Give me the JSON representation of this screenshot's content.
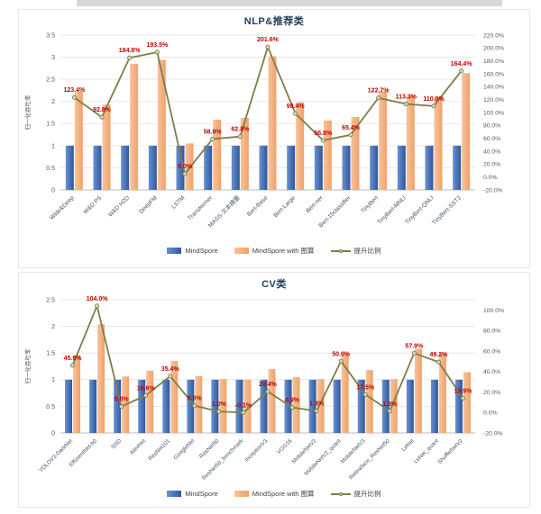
{
  "legend": {
    "mindspore": "MindSpore",
    "with_graph": "MindSpore with 图算",
    "ratio": "提升比例"
  },
  "colors": {
    "bar_blue": "#4472C4",
    "bar_blue_light": "#6893D1",
    "bar_blue_dark": "#31569B",
    "bar_orange": "#F4B183",
    "bar_orange_light": "#F7C49C",
    "bar_orange_dark": "#EFA26B",
    "line_olive": "#7E7E4C",
    "marker_fill": "#D7DCB8",
    "label_red": "#C00000",
    "tick_text": "#595959",
    "category_text": "#44546A",
    "grid": "#E2E2E2",
    "axis_line": "#A6A6A6",
    "title": "#243F60"
  },
  "chart_data": [
    {
      "type": "bar+line",
      "title": "NLP&推荐类",
      "y_axis_title": "归一化吞吐率",
      "legend_position": "bottom",
      "grid": true,
      "categories": [
        "Wide&Deep",
        "W&D PS",
        "W&D H2D",
        "DeepFM",
        "LSTM",
        "Transformer",
        "MASS-文本摘要",
        "Bert-Base",
        "Bert-Large",
        "Bert-ner",
        "Bert-15classifier",
        "TinyBert",
        "TinyBert-MNLI",
        "TinyBert-QNLI",
        "TinyBert-SST2"
      ],
      "series": [
        {
          "name": "MindSpore",
          "type": "bar",
          "values": [
            1,
            1,
            1,
            1,
            1,
            1,
            1,
            1,
            1,
            1,
            1,
            1,
            1,
            1,
            1
          ]
        },
        {
          "name": "MindSpore with 图算",
          "type": "bar",
          "values": [
            2.23,
            1.93,
            2.85,
            2.94,
            1.05,
            1.59,
            1.63,
            3.02,
            1.98,
            1.57,
            1.65,
            2.23,
            2.13,
            2.1,
            2.64
          ]
        },
        {
          "name": "提升比例",
          "type": "line",
          "values_pct": [
            123.4,
            92.8,
            184.8,
            193.5,
            5.0,
            58.9,
            62.8,
            201.6,
            98.4,
            56.8,
            65.4,
            122.7,
            113.3,
            110.0,
            164.4
          ]
        }
      ],
      "point_labels": [
        "123.4%",
        "92.8%",
        "184.8%",
        "193.5%",
        "5.0%",
        "58.9%",
        "62.8%",
        "201.6%",
        "98.4%",
        "56.8%",
        "65.4%",
        "122.7%",
        "113.3%",
        "110.0%",
        "164.4%"
      ],
      "left_axis": {
        "ticks": [
          "0",
          "0.5",
          "1",
          "1.5",
          "2",
          "2.5",
          "3",
          "3.5"
        ],
        "min": 0,
        "max": 3.5
      },
      "right_axis": {
        "ticks": [
          "-20.0%",
          "0.0%",
          "20.0%",
          "40.0%",
          "60.0%",
          "80.0%",
          "100.0%",
          "120.0%",
          "140.0%",
          "160.0%",
          "180.0%",
          "200.0%",
          "220.0%"
        ],
        "min": -20,
        "scale_max": 220
      }
    },
    {
      "type": "bar+line",
      "title": "CV类",
      "y_axis_title": "归一化吞吐率",
      "legend_position": "bottom",
      "grid": true,
      "categories": [
        "YOLOV3-DarkNet",
        "EfficientNet-b0",
        "SSD",
        "AlexNet",
        "ResNet101",
        "GoogleNet",
        "ResNet50",
        "ResNet50_benchmark",
        "InceptionV3",
        "VGG16",
        "MobileNetV2",
        "MobileNetV2_quant",
        "MobileNetV3",
        "Retinaface_ResNet50",
        "LeNet",
        "LeNet_quant",
        "ShuffleNetV2"
      ],
      "series": [
        {
          "name": "MindSpore",
          "type": "bar",
          "values": [
            1,
            1,
            1,
            1,
            1,
            1,
            1,
            1,
            1,
            1,
            1,
            1,
            1,
            1,
            1,
            1,
            1
          ]
        },
        {
          "name": "MindSpore with 图算",
          "type": "bar",
          "values": [
            1.46,
            2.04,
            1.06,
            1.17,
            1.35,
            1.07,
            1.01,
            1.0,
            1.2,
            1.05,
            1.01,
            1.5,
            1.18,
            1.01,
            1.58,
            1.49,
            1.14
          ]
        },
        {
          "name": "提升比例",
          "type": "line",
          "values_pct": [
            45.9,
            104.0,
            5.8,
            16.6,
            35.4,
            6.6,
            1.0,
            -0.1,
            20.4,
            4.9,
            1.4,
            50.0,
            17.5,
            1.3,
            57.9,
            49.2,
            13.9
          ]
        }
      ],
      "point_labels": [
        "45.9%",
        "104.0%",
        "5.8%",
        "16.6%",
        "35.4%",
        "6.6%",
        "1.0%",
        "-0.1%",
        "20.4%",
        "4.9%",
        "1.4%",
        "50.0%",
        "17.5%",
        "1.3%",
        "57.9%",
        "49.2%",
        "13.9%"
      ],
      "left_axis": {
        "ticks": [
          "0",
          "0.5",
          "1",
          "1.5",
          "2",
          "2.5"
        ],
        "min": 0,
        "max": 2.5
      },
      "right_axis": {
        "ticks": [
          "-20.0%",
          "0.0%",
          "20.0%",
          "40.0%",
          "60.0%",
          "80.0%",
          "100.0%"
        ],
        "min": -20,
        "scale_max": 110
      }
    }
  ]
}
